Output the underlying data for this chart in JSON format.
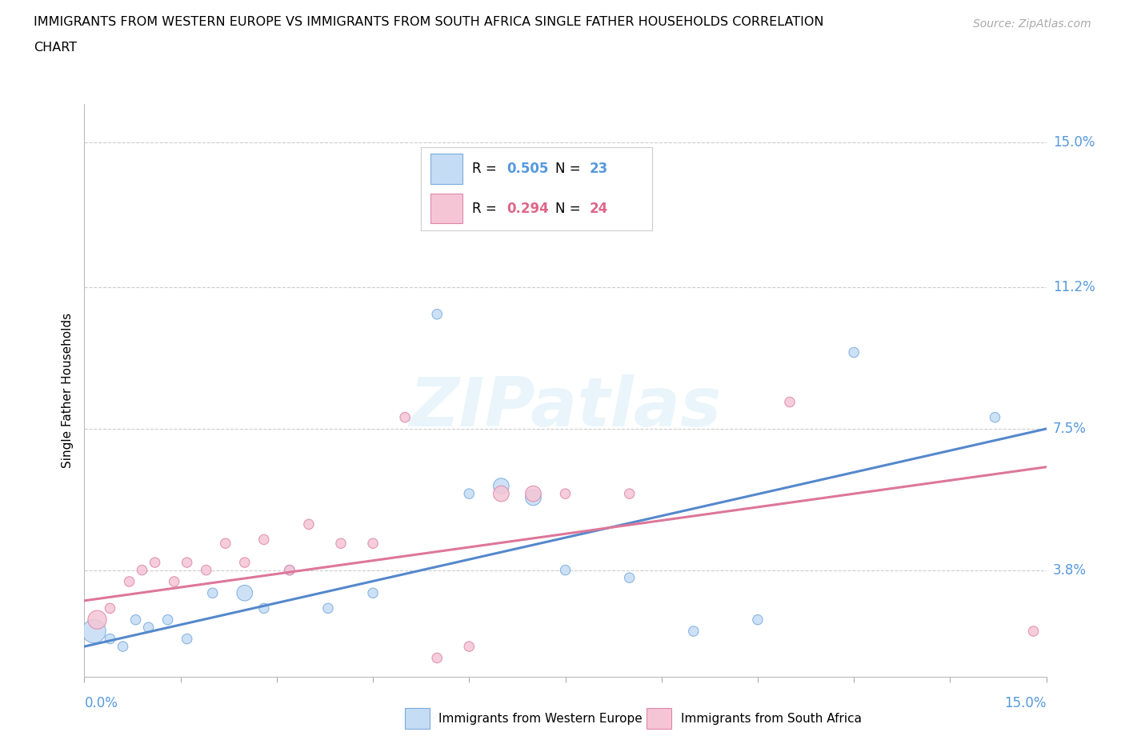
{
  "title_line1": "IMMIGRANTS FROM WESTERN EUROPE VS IMMIGRANTS FROM SOUTH AFRICA SINGLE FATHER HOUSEHOLDS CORRELATION",
  "title_line2": "CHART",
  "source": "Source: ZipAtlas.com",
  "ylabel": "Single Father Households",
  "ytick_labels": [
    "3.8%",
    "7.5%",
    "11.2%",
    "15.0%"
  ],
  "ytick_values": [
    3.8,
    7.5,
    11.2,
    15.0
  ],
  "xmin": 0.0,
  "xmax": 15.0,
  "ymin": 1.0,
  "ymax": 16.0,
  "legend_label1": "Immigrants from Western Europe",
  "legend_label2": "Immigrants from South Africa",
  "R1": 0.505,
  "N1": 23,
  "R2": 0.294,
  "N2": 24,
  "color_blue_fill": "#c5dcf5",
  "color_blue_edge": "#7aabdd",
  "color_blue_line": "#5588cc",
  "color_blue_text": "#5599dd",
  "color_pink_fill": "#f5c5d5",
  "color_pink_edge": "#dd88aa",
  "color_pink_line": "#dd7799",
  "color_pink_text": "#dd6688",
  "watermark": "ZIPatlas",
  "blue_x": [
    0.15,
    0.4,
    0.6,
    0.8,
    1.0,
    1.3,
    1.6,
    2.0,
    2.5,
    2.8,
    3.2,
    3.8,
    4.5,
    5.5,
    6.0,
    6.5,
    7.0,
    7.5,
    8.5,
    9.5,
    10.5,
    12.0,
    14.2
  ],
  "blue_y": [
    2.2,
    2.0,
    1.8,
    2.5,
    2.3,
    2.5,
    2.0,
    3.2,
    3.2,
    2.8,
    3.8,
    2.8,
    3.2,
    10.5,
    5.8,
    6.0,
    5.7,
    3.8,
    3.6,
    2.2,
    2.5,
    9.5,
    7.8
  ],
  "blue_size": [
    450,
    80,
    80,
    80,
    80,
    80,
    80,
    80,
    200,
    80,
    80,
    80,
    80,
    80,
    80,
    200,
    200,
    80,
    80,
    80,
    80,
    80,
    80
  ],
  "pink_x": [
    0.2,
    0.4,
    0.7,
    0.9,
    1.1,
    1.4,
    1.6,
    1.9,
    2.2,
    2.5,
    2.8,
    3.2,
    3.5,
    4.0,
    4.5,
    5.0,
    5.5,
    6.0,
    6.5,
    7.0,
    7.5,
    8.5,
    11.0,
    14.8
  ],
  "pink_y": [
    2.5,
    2.8,
    3.5,
    3.8,
    4.0,
    3.5,
    4.0,
    3.8,
    4.5,
    4.0,
    4.6,
    3.8,
    5.0,
    4.5,
    4.5,
    7.8,
    1.5,
    1.8,
    5.8,
    5.8,
    5.8,
    5.8,
    8.2,
    2.2
  ],
  "pink_size": [
    280,
    80,
    80,
    80,
    80,
    80,
    80,
    80,
    80,
    80,
    80,
    80,
    80,
    80,
    80,
    80,
    80,
    80,
    200,
    200,
    80,
    80,
    80,
    80
  ],
  "blue_line_start_y": 1.8,
  "blue_line_end_y": 7.5,
  "pink_line_start_y": 3.0,
  "pink_line_end_y": 6.5
}
